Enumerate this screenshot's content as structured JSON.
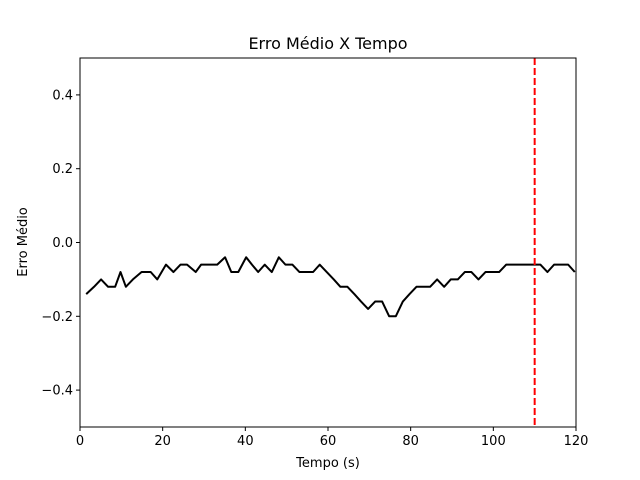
{
  "chart_data": {
    "type": "line",
    "title": "Erro Médio X Tempo",
    "xlabel": "Tempo (s)",
    "ylabel": "Erro Médio",
    "xlim": [
      0,
      120
    ],
    "ylim": [
      -0.5,
      0.5
    ],
    "xticks": [
      0,
      20,
      40,
      60,
      80,
      100,
      120
    ],
    "xtick_labels": [
      "0",
      "20",
      "40",
      "60",
      "80",
      "100",
      "120"
    ],
    "yticks": [
      -0.4,
      -0.2,
      0.0,
      0.2,
      0.4
    ],
    "ytick_labels": [
      "−0.4",
      "−0.2",
      "0.0",
      "0.2",
      "0.4"
    ],
    "grid": false,
    "series": [
      {
        "color": "#000000",
        "x": [
          1.5,
          3.4,
          5.1,
          6.8,
          8.5,
          9.8,
          11.1,
          12.8,
          14.9,
          17.1,
          18.7,
          20.8,
          22.6,
          24.3,
          25.9,
          28,
          29.3,
          31,
          33.2,
          35.1,
          36.6,
          38.3,
          40.2,
          41.6,
          43.1,
          44.7,
          46.4,
          48.1,
          49.7,
          51.4,
          53.1,
          54.8,
          56.4,
          58,
          59.7,
          61.4,
          63,
          64.7,
          66.4,
          68,
          69.7,
          71.4,
          73.1,
          74.8,
          76.4,
          78.1,
          79.7,
          81.4,
          83.1,
          84.7,
          86.4,
          88.1,
          89.7,
          91.4,
          93.1,
          94.7,
          96.4,
          98.1,
          99.7,
          101.4,
          103.1,
          104.7,
          106.4,
          108.1,
          109.7,
          111.4,
          113.1,
          114.7,
          116.4,
          118.1,
          119.7
        ],
        "y": [
          -0.14,
          -0.12,
          -0.1,
          -0.12,
          -0.12,
          -0.08,
          -0.12,
          -0.1,
          -0.08,
          -0.08,
          -0.1,
          -0.06,
          -0.08,
          -0.06,
          -0.06,
          -0.08,
          -0.06,
          -0.06,
          -0.06,
          -0.04,
          -0.08,
          -0.08,
          -0.04,
          -0.06,
          -0.08,
          -0.06,
          -0.08,
          -0.04,
          -0.06,
          -0.06,
          -0.08,
          -0.08,
          -0.08,
          -0.06,
          -0.08,
          -0.1,
          -0.12,
          -0.12,
          -0.14,
          -0.16,
          -0.18,
          -0.16,
          -0.16,
          -0.2,
          -0.2,
          -0.16,
          -0.14,
          -0.12,
          -0.12,
          -0.12,
          -0.1,
          -0.12,
          -0.1,
          -0.1,
          -0.08,
          -0.08,
          -0.1,
          -0.08,
          -0.08,
          -0.08,
          -0.06,
          -0.06,
          -0.06,
          -0.06,
          -0.06,
          -0.06,
          -0.08,
          -0.06,
          -0.06,
          -0.06,
          -0.08
        ]
      }
    ],
    "vline": {
      "x": 110,
      "color": "#ff0000",
      "style": "dashed"
    }
  }
}
